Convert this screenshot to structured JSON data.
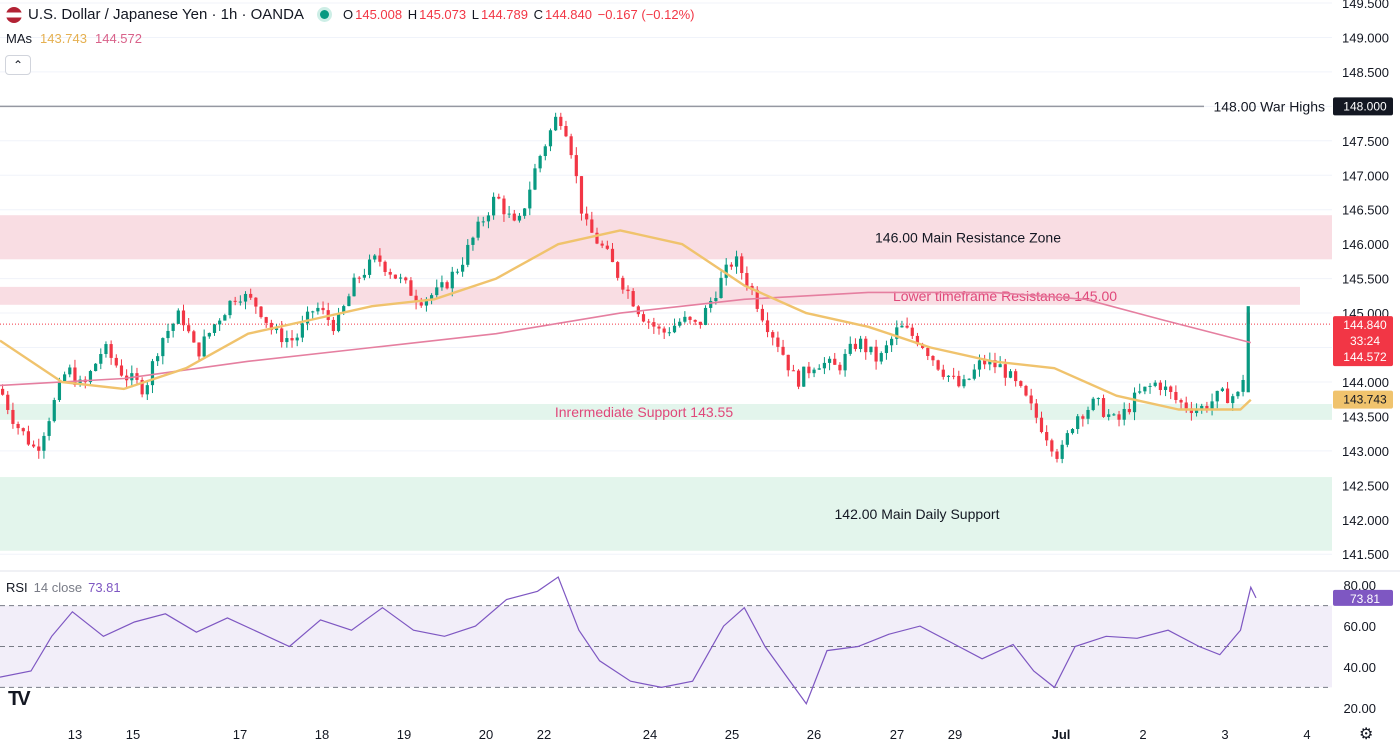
{
  "header": {
    "symbol": "U.S. Dollar / Japanese Yen · 1h · OANDA",
    "o_label": "O",
    "o_value": "145.008",
    "h_label": "H",
    "h_value": "145.073",
    "l_label": "L",
    "l_value": "144.789",
    "c_label": "C",
    "c_value": "144.840",
    "change": "−0.167 (−0.12%)"
  },
  "ma": {
    "label": "MAs",
    "ma1": "143.743",
    "ma2": "144.572"
  },
  "rsi": {
    "label": "RSI",
    "params": "14 close",
    "value": "73.81"
  },
  "colors": {
    "up": "#089981",
    "down": "#f23645",
    "ma_fast": "#f0c36d",
    "ma_slow": "#e57fa0",
    "rsi_line": "#7e57c2",
    "resistance_zone": "#f9dbe2",
    "support_zone": "#e3f5ec",
    "line_148": "#9598a1"
  },
  "chart_data": [
    {
      "type": "candlestick",
      "title": "U.S. Dollar / Japanese Yen · 1h · OANDA",
      "ylim": [
        141.3,
        149.5
      ],
      "y_ticks": [
        141.5,
        142.0,
        142.5,
        143.0,
        143.5,
        144.0,
        144.5,
        145.0,
        145.5,
        146.0,
        146.5,
        147.0,
        147.5,
        148.0,
        148.5,
        149.0,
        149.5
      ],
      "y_tick_labels": [
        "141.500",
        "142.000",
        "142.500",
        "143.000",
        "143.500",
        "144.000",
        "144.500",
        "145.000",
        "145.500",
        "146.000",
        "146.500",
        "147.000",
        "147.500",
        "148.000",
        "148.500",
        "149.000",
        "149.500"
      ],
      "x_ticks": [
        "13",
        "15",
        "17",
        "18",
        "19",
        "20",
        "22",
        "24",
        "25",
        "26",
        "27",
        "29",
        "Jul",
        "2",
        "3",
        "4"
      ],
      "price_path": [
        {
          "t": 0,
          "p": 143.9
        },
        {
          "t": 3,
          "p": 143.4
        },
        {
          "t": 7,
          "p": 143.0
        },
        {
          "t": 10,
          "p": 143.6
        },
        {
          "t": 13,
          "p": 144.2
        },
        {
          "t": 16,
          "p": 143.9
        },
        {
          "t": 20,
          "p": 144.5
        },
        {
          "t": 24,
          "p": 144.1
        },
        {
          "t": 28,
          "p": 143.9
        },
        {
          "t": 31,
          "p": 144.6
        },
        {
          "t": 35,
          "p": 145.0
        },
        {
          "t": 38,
          "p": 144.4
        },
        {
          "t": 42,
          "p": 144.9
        },
        {
          "t": 46,
          "p": 145.3
        },
        {
          "t": 50,
          "p": 145.1
        },
        {
          "t": 53,
          "p": 144.7
        },
        {
          "t": 57,
          "p": 144.6
        },
        {
          "t": 61,
          "p": 145.1
        },
        {
          "t": 65,
          "p": 144.8
        },
        {
          "t": 69,
          "p": 145.5
        },
        {
          "t": 73,
          "p": 145.8
        },
        {
          "t": 77,
          "p": 145.5
        },
        {
          "t": 81,
          "p": 145.2
        },
        {
          "t": 85,
          "p": 145.3
        },
        {
          "t": 89,
          "p": 145.7
        },
        {
          "t": 93,
          "p": 146.3
        },
        {
          "t": 96,
          "p": 146.7
        },
        {
          "t": 100,
          "p": 146.2
        },
        {
          "t": 104,
          "p": 147.2
        },
        {
          "t": 108,
          "p": 147.9
        },
        {
          "t": 110,
          "p": 147.6
        },
        {
          "t": 113,
          "p": 146.3
        },
        {
          "t": 117,
          "p": 145.9
        },
        {
          "t": 120,
          "p": 145.5
        },
        {
          "t": 124,
          "p": 145.0
        },
        {
          "t": 128,
          "p": 144.7
        },
        {
          "t": 132,
          "p": 144.9
        },
        {
          "t": 135,
          "p": 144.8
        },
        {
          "t": 139,
          "p": 145.4
        },
        {
          "t": 142,
          "p": 145.8
        },
        {
          "t": 145,
          "p": 145.4
        },
        {
          "t": 148,
          "p": 144.9
        },
        {
          "t": 151,
          "p": 144.5
        },
        {
          "t": 154,
          "p": 144.0
        },
        {
          "t": 158,
          "p": 144.3
        },
        {
          "t": 162,
          "p": 144.2
        },
        {
          "t": 166,
          "p": 144.6
        },
        {
          "t": 170,
          "p": 144.3
        },
        {
          "t": 174,
          "p": 144.8
        },
        {
          "t": 178,
          "p": 144.6
        },
        {
          "t": 182,
          "p": 144.2
        },
        {
          "t": 186,
          "p": 143.9
        },
        {
          "t": 190,
          "p": 144.3
        },
        {
          "t": 194,
          "p": 144.2
        },
        {
          "t": 198,
          "p": 143.8
        },
        {
          "t": 202,
          "p": 143.3
        },
        {
          "t": 205,
          "p": 142.9
        },
        {
          "t": 208,
          "p": 143.5
        },
        {
          "t": 212,
          "p": 143.7
        },
        {
          "t": 216,
          "p": 143.4
        },
        {
          "t": 220,
          "p": 143.8
        },
        {
          "t": 224,
          "p": 144.0
        },
        {
          "t": 228,
          "p": 143.7
        },
        {
          "t": 232,
          "p": 143.6
        },
        {
          "t": 236,
          "p": 143.8
        },
        {
          "t": 240,
          "p": 143.8
        },
        {
          "t": 242,
          "p": 144.9
        }
      ],
      "ma_fast_path": [
        {
          "t": 0,
          "p": 144.6
        },
        {
          "t": 12,
          "p": 144.0
        },
        {
          "t": 24,
          "p": 143.9
        },
        {
          "t": 36,
          "p": 144.2
        },
        {
          "t": 48,
          "p": 144.7
        },
        {
          "t": 60,
          "p": 144.9
        },
        {
          "t": 72,
          "p": 145.1
        },
        {
          "t": 84,
          "p": 145.2
        },
        {
          "t": 96,
          "p": 145.5
        },
        {
          "t": 108,
          "p": 146.0
        },
        {
          "t": 120,
          "p": 146.2
        },
        {
          "t": 132,
          "p": 146.0
        },
        {
          "t": 144,
          "p": 145.4
        },
        {
          "t": 156,
          "p": 145.0
        },
        {
          "t": 168,
          "p": 144.8
        },
        {
          "t": 180,
          "p": 144.5
        },
        {
          "t": 192,
          "p": 144.3
        },
        {
          "t": 204,
          "p": 144.2
        },
        {
          "t": 216,
          "p": 143.8
        },
        {
          "t": 228,
          "p": 143.6
        },
        {
          "t": 240,
          "p": 143.6
        },
        {
          "t": 242,
          "p": 143.743
        }
      ],
      "ma_slow_path": [
        {
          "t": 0,
          "p": 143.95
        },
        {
          "t": 24,
          "p": 144.05
        },
        {
          "t": 48,
          "p": 144.3
        },
        {
          "t": 72,
          "p": 144.5
        },
        {
          "t": 96,
          "p": 144.7
        },
        {
          "t": 120,
          "p": 145.0
        },
        {
          "t": 144,
          "p": 145.2
        },
        {
          "t": 168,
          "p": 145.3
        },
        {
          "t": 192,
          "p": 145.3
        },
        {
          "t": 210,
          "p": 145.2
        },
        {
          "t": 225,
          "p": 144.9
        },
        {
          "t": 242,
          "p": 144.572
        }
      ],
      "levels": [
        {
          "name": "148.00 War Highs",
          "price": 148.0,
          "badge": "148.000"
        }
      ],
      "zones": [
        {
          "name": "146.00 Main Resistance Zone",
          "from": 145.78,
          "to": 146.42,
          "kind": "resistance"
        },
        {
          "name": "Lower timeframe Resistance 145.00",
          "from": 145.12,
          "to": 145.38,
          "kind": "resistance"
        },
        {
          "name": "Inrermediate Support 143.55",
          "from": 143.45,
          "to": 143.68,
          "kind": "support"
        },
        {
          "name": "142.00 Main Daily Support",
          "from": 141.55,
          "to": 142.62,
          "kind": "support"
        }
      ],
      "price_badges": [
        {
          "label": "144.840",
          "sub": "33:24",
          "price": 144.84,
          "kind": "price"
        },
        {
          "label": "144.572",
          "price": 144.572,
          "kind": "ma_slow"
        },
        {
          "label": "143.743",
          "price": 143.743,
          "kind": "ma_fast"
        }
      ]
    },
    {
      "type": "line",
      "title": "RSI 14 close",
      "ylim": [
        15,
        85
      ],
      "y_ticks": [
        20,
        40,
        60,
        80
      ],
      "y_tick_labels": [
        "20.00",
        "40.00",
        "60.00",
        "80.00"
      ],
      "bands": [
        30,
        50,
        70
      ],
      "last_value": 73.81,
      "series": [
        {
          "t": 0,
          "v": 35
        },
        {
          "t": 6,
          "v": 38
        },
        {
          "t": 10,
          "v": 55
        },
        {
          "t": 14,
          "v": 67
        },
        {
          "t": 20,
          "v": 55
        },
        {
          "t": 26,
          "v": 62
        },
        {
          "t": 32,
          "v": 66
        },
        {
          "t": 38,
          "v": 57
        },
        {
          "t": 44,
          "v": 64
        },
        {
          "t": 50,
          "v": 57
        },
        {
          "t": 56,
          "v": 50
        },
        {
          "t": 62,
          "v": 63
        },
        {
          "t": 68,
          "v": 58
        },
        {
          "t": 74,
          "v": 69
        },
        {
          "t": 80,
          "v": 58
        },
        {
          "t": 86,
          "v": 55
        },
        {
          "t": 92,
          "v": 60
        },
        {
          "t": 98,
          "v": 73
        },
        {
          "t": 104,
          "v": 77
        },
        {
          "t": 108,
          "v": 84
        },
        {
          "t": 112,
          "v": 58
        },
        {
          "t": 116,
          "v": 43
        },
        {
          "t": 122,
          "v": 33
        },
        {
          "t": 128,
          "v": 30
        },
        {
          "t": 134,
          "v": 33
        },
        {
          "t": 140,
          "v": 60
        },
        {
          "t": 144,
          "v": 69
        },
        {
          "t": 148,
          "v": 50
        },
        {
          "t": 152,
          "v": 36
        },
        {
          "t": 156,
          "v": 22
        },
        {
          "t": 160,
          "v": 48
        },
        {
          "t": 166,
          "v": 50
        },
        {
          "t": 172,
          "v": 56
        },
        {
          "t": 178,
          "v": 60
        },
        {
          "t": 184,
          "v": 52
        },
        {
          "t": 190,
          "v": 44
        },
        {
          "t": 196,
          "v": 51
        },
        {
          "t": 200,
          "v": 38
        },
        {
          "t": 204,
          "v": 30
        },
        {
          "t": 208,
          "v": 50
        },
        {
          "t": 214,
          "v": 55
        },
        {
          "t": 220,
          "v": 54
        },
        {
          "t": 226,
          "v": 58
        },
        {
          "t": 232,
          "v": 50
        },
        {
          "t": 236,
          "v": 46
        },
        {
          "t": 240,
          "v": 58
        },
        {
          "t": 242,
          "v": 79
        },
        {
          "t": 243,
          "v": 73.81
        }
      ]
    }
  ],
  "branding": {
    "logo": "TV"
  }
}
